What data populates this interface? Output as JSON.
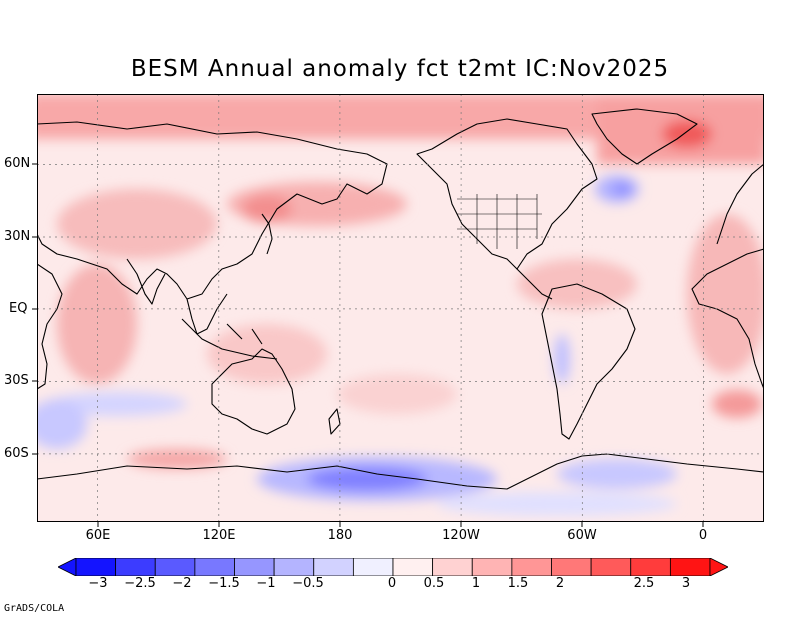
{
  "title": "BESM  Annual anomaly fct t2mt IC:Nov2025",
  "x_labels": [
    "60E",
    "120E",
    "180",
    "120W",
    "60W",
    "0"
  ],
  "y_labels": [
    "60N",
    "30N",
    "EQ",
    "30S",
    "60S"
  ],
  "colorbar": {
    "labels": [
      "−3",
      "−2.5",
      "−2",
      "−1.5",
      "−1",
      "−0.5",
      "0",
      "0.5",
      "1",
      "1.5",
      "2",
      "2.5",
      "3"
    ],
    "colors": [
      "#1414ff",
      "#3c3cff",
      "#5a5aff",
      "#7878ff",
      "#9696ff",
      "#b4b4ff",
      "#d2d2ff",
      "#f0f0ff",
      "#fff0f0",
      "#ffd2d2",
      "#ffb4b4",
      "#ff9696",
      "#ff7878",
      "#ff5a5a",
      "#ff3c3c",
      "#ff1414"
    ]
  },
  "credit": "GrADS/COLA",
  "map": {
    "lon_range": [
      30,
      390
    ],
    "lat_range": [
      -90,
      90
    ],
    "background_color": "#fde8e8",
    "grid": "dotted every 30 degrees"
  }
}
